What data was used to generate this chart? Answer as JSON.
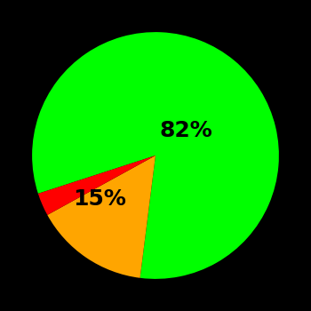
{
  "slices": [
    82,
    15,
    3
  ],
  "colors": [
    "#00ff00",
    "#ffa500",
    "#ff0000"
  ],
  "labels": [
    "82%",
    "15%",
    ""
  ],
  "background_color": "#000000",
  "label_fontsize": 18,
  "label_fontweight": "bold",
  "startangle": 198,
  "counterclock": false
}
